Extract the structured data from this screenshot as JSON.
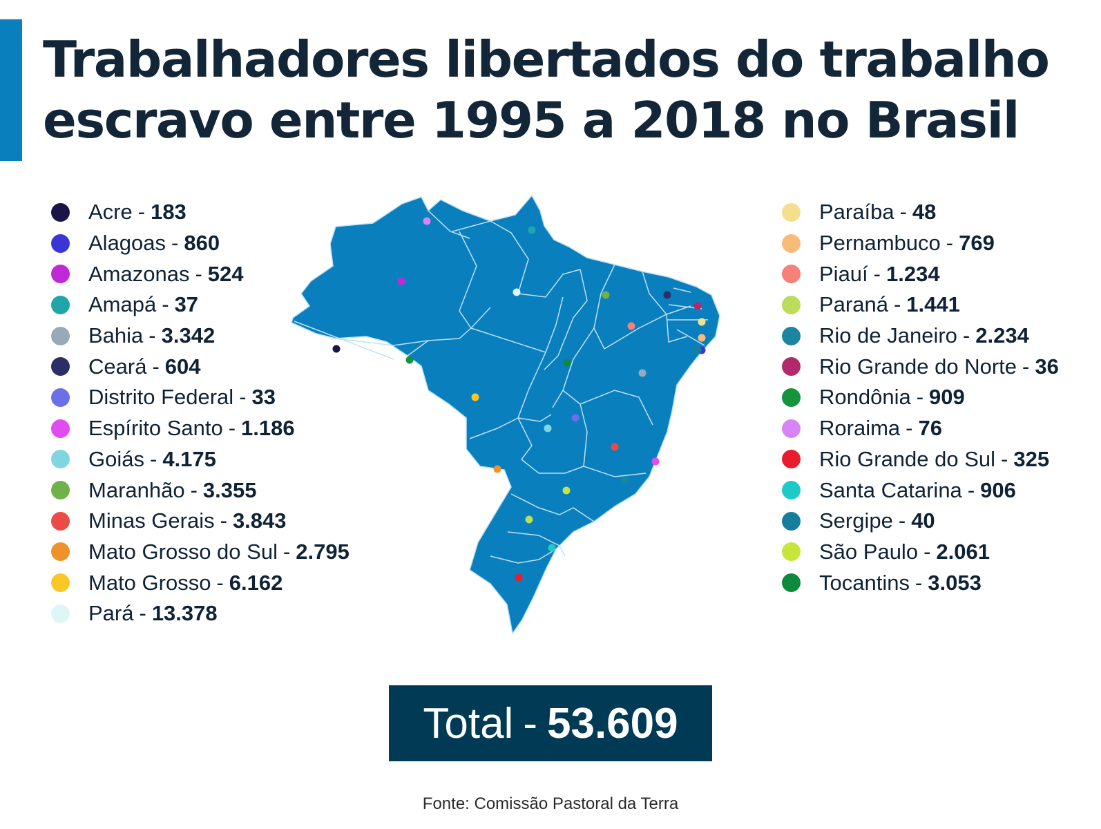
{
  "title": {
    "line1": "Trabalhadores libertados do trabalho",
    "line2": "escravo entre 1995 a 2018 no Brasil"
  },
  "legend_left": [
    {
      "state": "Acre",
      "value": "183",
      "color": "#1b1446"
    },
    {
      "state": "Alagoas",
      "value": "860",
      "color": "#3b34d6"
    },
    {
      "state": "Amazonas",
      "value": "524",
      "color": "#c02ad6"
    },
    {
      "state": "Amapá",
      "value": "37",
      "color": "#20a6a8"
    },
    {
      "state": "Bahia",
      "value": "3.342",
      "color": "#98aab8"
    },
    {
      "state": "Ceará",
      "value": "604",
      "color": "#2b2f66"
    },
    {
      "state": "Distrito Federal",
      "value": "33",
      "color": "#6b70e6"
    },
    {
      "state": "Espírito Santo",
      "value": "1.186",
      "color": "#df4cf0"
    },
    {
      "state": "Goiás",
      "value": "4.175",
      "color": "#7fd6e0"
    },
    {
      "state": "Maranhão",
      "value": "3.355",
      "color": "#6fb24a"
    },
    {
      "state": "Minas Gerais",
      "value": "3.843",
      "color": "#ec4a44"
    },
    {
      "state": "Mato Grosso do Sul",
      "value": "2.795",
      "color": "#f0922c"
    },
    {
      "state": "Mato Grosso",
      "value": "6.162",
      "color": "#f8c826"
    },
    {
      "state": "Pará",
      "value": "13.378",
      "color": "#ddf6f8"
    }
  ],
  "legend_right": [
    {
      "state": "Paraíba",
      "value": "48",
      "color": "#f3df8c"
    },
    {
      "state": "Pernambuco",
      "value": "769",
      "color": "#f8bc78"
    },
    {
      "state": "Piauí",
      "value": "1.234",
      "color": "#f78078"
    },
    {
      "state": "Paraná",
      "value": "1.441",
      "color": "#bcdc5a"
    },
    {
      "state": "Rio de Janeiro",
      "value": "2.234",
      "color": "#1c86a2"
    },
    {
      "state": "Rio Grande do Norte",
      "value": "36",
      "color": "#b22a6c"
    },
    {
      "state": "Rondônia",
      "value": "909",
      "color": "#15943e"
    },
    {
      "state": "Roraima",
      "value": "76",
      "color": "#d884f4"
    },
    {
      "state": "Rio Grande do Sul",
      "value": "325",
      "color": "#e81c2c"
    },
    {
      "state": "Santa Catarina",
      "value": "906",
      "color": "#1ecac8"
    },
    {
      "state": "Sergipe",
      "value": "40",
      "color": "#147e9c"
    },
    {
      "state": "São Paulo",
      "value": "2.061",
      "color": "#c6e43a"
    },
    {
      "state": "Tocantins",
      "value": "3.053",
      "color": "#0e8a3c"
    }
  ],
  "map": {
    "fill": "#0a7fbe",
    "border": "#bfe2f3"
  },
  "total": {
    "label": "Total",
    "value": "53.609"
  },
  "separator": "-",
  "source": "Fonte: Comissão Pastoral da Terra"
}
